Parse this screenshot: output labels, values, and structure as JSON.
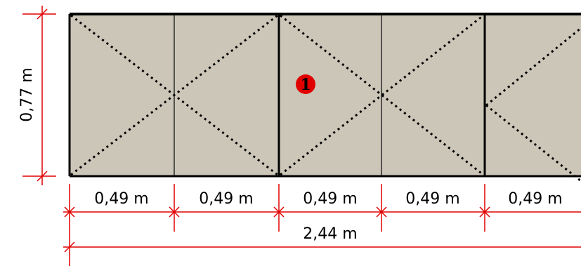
{
  "panel": {
    "fill_color": "#cbc6b7",
    "outline_color": "#000000",
    "height_label": "0,77 m",
    "marker": {
      "number": "1",
      "color": "#e00000"
    }
  },
  "dimensions": {
    "line_color": "#e00000",
    "segment_labels": [
      "0,49 m",
      "0,49 m",
      "0,49 m",
      "0,49 m",
      "0,49 m"
    ],
    "total_label": "2,44 m"
  }
}
